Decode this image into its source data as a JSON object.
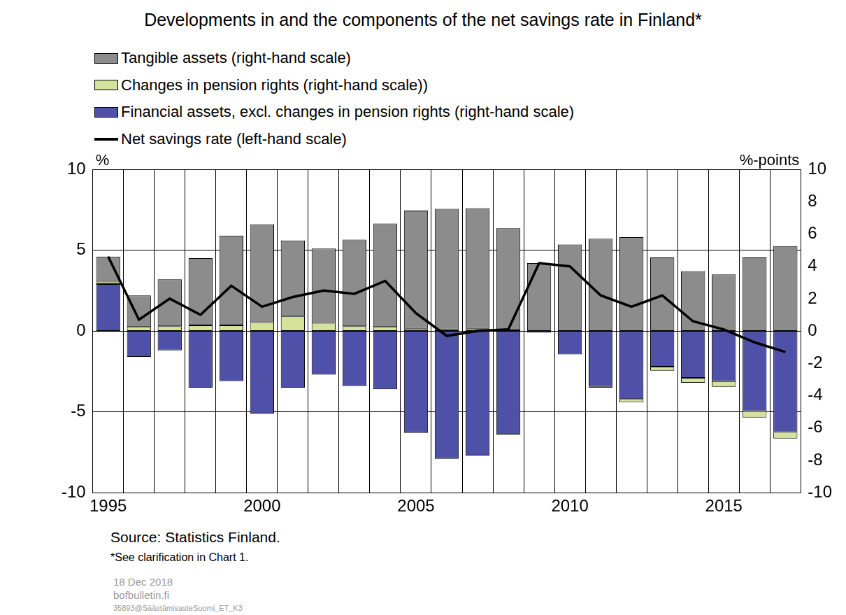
{
  "chart_data": {
    "type": "bar",
    "title": "Developments in and the components of the net savings rate in Finland*",
    "categories": [
      "1995",
      null,
      null,
      null,
      null,
      "2000",
      null,
      null,
      null,
      null,
      "2005",
      null,
      null,
      null,
      null,
      "2010",
      null,
      null,
      null,
      null,
      "2015",
      null,
      null
    ],
    "stacked": true,
    "grid": true,
    "legend": "upper left",
    "y_label": "%",
    "y2_label": "%-points",
    "ylim": [
      -10,
      10
    ],
    "yticks": [
      -10,
      -5,
      0,
      5,
      10
    ],
    "y2lim": [
      -10,
      10
    ],
    "y2ticks": [
      -10,
      -8,
      -6,
      -4,
      -2,
      0,
      2,
      4,
      6,
      8,
      10
    ],
    "series": [
      {
        "name": "Tangible assets (right-hand scale)",
        "type": "bar",
        "axis": "y2",
        "color": "#8c8c8c",
        "values": [
          1.55,
          1.95,
          2.9,
          4.15,
          5.55,
          6.05,
          4.7,
          4.6,
          5.35,
          6.4,
          7.3,
          7.45,
          7.45,
          6.3,
          4.2,
          5.35,
          5.7,
          5.8,
          4.55,
          3.7,
          3.5,
          4.55,
          5.25
        ]
      },
      {
        "name": "Changes in pension rights (right-hand scale))",
        "type": "bar",
        "axis": "y2",
        "color": "#d4e29c",
        "values": [
          0.15,
          0.25,
          0.3,
          0.35,
          0.35,
          0.55,
          0.9,
          0.5,
          0.3,
          0.25,
          0.15,
          0.1,
          0.15,
          0.05,
          0,
          0,
          -0.05,
          -0.2,
          -0.25,
          -0.3,
          -0.35,
          -0.4,
          -0.4
        ]
      },
      {
        "name": "Financial assets, excl. changes in pension rights (right-hand scale)",
        "type": "bar",
        "axis": "y2",
        "color": "#4f51a8",
        "values": [
          2.9,
          -1.6,
          -1.2,
          -3.5,
          -3.1,
          -5.1,
          -3.5,
          -2.7,
          -3.4,
          -3.6,
          -6.3,
          -7.9,
          -7.7,
          -6.4,
          -0.1,
          -1.45,
          -3.45,
          -4.2,
          -2.2,
          -2.9,
          -3.1,
          -4.95,
          -6.25
        ]
      },
      {
        "name": "Net savings rate (left-hand scale)",
        "type": "line",
        "axis": "y",
        "color": "#000000",
        "values": [
          4.6,
          0.7,
          2.0,
          1.0,
          2.8,
          1.5,
          2.1,
          2.5,
          2.3,
          3.1,
          1.1,
          -0.3,
          0.0,
          0.1,
          4.2,
          4.0,
          2.2,
          1.5,
          2.2,
          0.6,
          0.1,
          -0.7,
          -1.3
        ]
      }
    ],
    "source": "Source: Statistics Finland.",
    "note": "*See clarification in Chart 1.",
    "footer": [
      "18 Dec 2018",
      "bofbulletin.fi",
      "35893@SäästämisasteSuomi_ET_K3"
    ]
  }
}
